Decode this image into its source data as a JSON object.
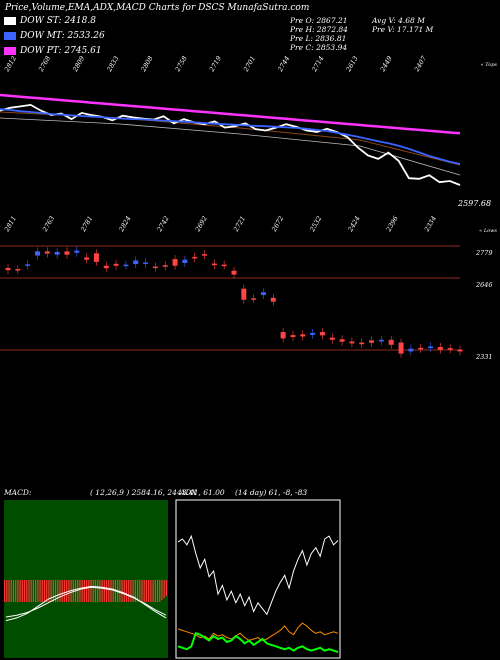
{
  "header": {
    "title": "Price,Volume,EMA,ADX,MACD Charts for DSCS MunafaSutra.com",
    "legend": [
      {
        "label": "DOW ST: 2418.8",
        "color": "#ffffff"
      },
      {
        "label": "DOW MT: 2533.26",
        "color": "#3b63ff"
      },
      {
        "label": "DOW PT: 2745.61",
        "color": "#ff33ff"
      }
    ],
    "stats_col1": [
      "Pre O: 2867.21",
      "Pre H: 2872.84",
      "Pre L: 2836.81",
      "Pre C: 2853.94"
    ],
    "stats_col2": [
      "Avg V: 4.68 M",
      "Pre V: 17.171 M"
    ]
  },
  "chart_data": [
    {
      "type": "line",
      "name": "price-ema-panel",
      "top_labels": [
        "2812",
        "2768",
        "2809",
        "2833",
        "2808",
        "2758",
        "2719",
        "2701",
        "2744",
        "2714",
        "2613",
        "2449",
        "2407"
      ],
      "bottom_labels": [
        "2811",
        "2763",
        "2781",
        "2824",
        "2742",
        "2692",
        "2721",
        "2672",
        "2532",
        "2424",
        "2396",
        "2334"
      ],
      "corner_labels": {
        "top_right": "« Tops",
        "bottom_right": "« Lows"
      },
      "last_price_label": "2597.68",
      "series": [
        {
          "color": "#ffffff",
          "values": [
            2860,
            2870,
            2875,
            2880,
            2860,
            2845,
            2850,
            2830,
            2852,
            2844,
            2838,
            2826,
            2842,
            2836,
            2832,
            2828,
            2840,
            2815,
            2830,
            2818,
            2812,
            2822,
            2800,
            2805,
            2815,
            2795,
            2790,
            2800,
            2812,
            2803,
            2790,
            2785,
            2796,
            2784,
            2766,
            2730,
            2702,
            2690,
            2712,
            2683,
            2622,
            2620,
            2632,
            2608,
            2612,
            2598
          ]
        },
        {
          "color": "#3b63ff",
          "values": [
            2865,
            2862,
            2858,
            2855,
            2852,
            2848,
            2846,
            2843,
            2841,
            2839,
            2837,
            2834,
            2832,
            2830,
            2829,
            2827,
            2825,
            2823,
            2821,
            2819,
            2816,
            2814,
            2812,
            2810,
            2808,
            2806,
            2805,
            2803,
            2801,
            2799,
            2796,
            2792,
            2788,
            2782,
            2775,
            2768,
            2760,
            2752,
            2745,
            2736,
            2725,
            2713,
            2700,
            2690,
            2680,
            2672
          ]
        },
        {
          "color": "#ff33ff",
          "values": [
            2915,
            2912,
            2909,
            2906,
            2903,
            2900,
            2897,
            2894,
            2891,
            2888,
            2885,
            2882,
            2879,
            2876,
            2873,
            2870,
            2867,
            2864,
            2861,
            2858,
            2855,
            2852,
            2849,
            2846,
            2843,
            2840,
            2837,
            2834,
            2831,
            2828,
            2825,
            2822,
            2819,
            2816,
            2813,
            2810,
            2807,
            2804,
            2801,
            2798,
            2795,
            2792,
            2789,
            2786,
            2783,
            2780
          ]
        }
      ]
    },
    {
      "type": "candlestick",
      "name": "candles-panel",
      "level_labels": [
        "2779",
        "2646",
        "2331"
      ],
      "candles": [
        {
          "o": 2730,
          "c": 2722,
          "color": "#ff4444"
        },
        {
          "o": 2726,
          "c": 2724,
          "color": "#ff4444"
        },
        {
          "o": 2740,
          "c": 2743,
          "color": "#3b63ff"
        },
        {
          "o": 2775,
          "c": 2790,
          "color": "#3b63ff"
        },
        {
          "o": 2790,
          "c": 2782,
          "color": "#ff4444"
        },
        {
          "o": 2778,
          "c": 2788,
          "color": "#3b63ff"
        },
        {
          "o": 2790,
          "c": 2778,
          "color": "#ff4444"
        },
        {
          "o": 2785,
          "c": 2793,
          "color": "#3b63ff"
        },
        {
          "o": 2768,
          "c": 2760,
          "color": "#ff4444"
        },
        {
          "o": 2783,
          "c": 2752,
          "color": "#ff4444"
        },
        {
          "o": 2738,
          "c": 2729,
          "color": "#ff4444"
        },
        {
          "o": 2745,
          "c": 2738,
          "color": "#ff4444"
        },
        {
          "o": 2740,
          "c": 2742,
          "color": "#3b63ff"
        },
        {
          "o": 2744,
          "c": 2757,
          "color": "#3b63ff"
        },
        {
          "o": 2745,
          "c": 2750,
          "color": "#3b63ff"
        },
        {
          "o": 2735,
          "c": 2731,
          "color": "#ff4444"
        },
        {
          "o": 2740,
          "c": 2736,
          "color": "#ff4444"
        },
        {
          "o": 2762,
          "c": 2738,
          "color": "#ff4444"
        },
        {
          "o": 2760,
          "c": 2748,
          "color": "#3b63ff"
        },
        {
          "o": 2770,
          "c": 2765,
          "color": "#ff4444"
        },
        {
          "o": 2776,
          "c": 2780,
          "color": "#ff4444"
        },
        {
          "o": 2746,
          "c": 2740,
          "color": "#ff4444"
        },
        {
          "o": 2742,
          "c": 2740,
          "color": "#ff4444"
        },
        {
          "o": 2720,
          "c": 2706,
          "color": "#ff4444"
        },
        {
          "o": 2655,
          "c": 2615,
          "color": "#ff4444"
        },
        {
          "o": 2618,
          "c": 2620,
          "color": "#ff4444"
        },
        {
          "o": 2632,
          "c": 2642,
          "color": "#3b63ff"
        },
        {
          "o": 2622,
          "c": 2608,
          "color": "#ff4444"
        },
        {
          "o": 2498,
          "c": 2475,
          "color": "#ff4444"
        },
        {
          "o": 2487,
          "c": 2480,
          "color": "#ff4444"
        },
        {
          "o": 2490,
          "c": 2482,
          "color": "#ff4444"
        },
        {
          "o": 2495,
          "c": 2488,
          "color": "#3b63ff"
        },
        {
          "o": 2498,
          "c": 2486,
          "color": "#ff4444"
        },
        {
          "o": 2478,
          "c": 2470,
          "color": "#ff4444"
        },
        {
          "o": 2472,
          "c": 2463,
          "color": "#ff4444"
        },
        {
          "o": 2464,
          "c": 2457,
          "color": "#ff4444"
        },
        {
          "o": 2460,
          "c": 2454,
          "color": "#ff4444"
        },
        {
          "o": 2468,
          "c": 2459,
          "color": "#ff4444"
        },
        {
          "o": 2470,
          "c": 2464,
          "color": "#3b63ff"
        },
        {
          "o": 2470,
          "c": 2452,
          "color": "#ff4444"
        },
        {
          "o": 2460,
          "c": 2420,
          "color": "#ff4444"
        },
        {
          "o": 2428,
          "c": 2438,
          "color": "#3b63ff"
        },
        {
          "o": 2437,
          "c": 2441,
          "color": "#ff4444"
        },
        {
          "o": 2440,
          "c": 2446,
          "color": "#3b63ff"
        },
        {
          "o": 2444,
          "c": 2434,
          "color": "#ff4444"
        },
        {
          "o": 2440,
          "c": 2436,
          "color": "#ff4444"
        },
        {
          "o": 2435,
          "c": 2428,
          "color": "#ff4444"
        }
      ]
    },
    {
      "type": "bar",
      "name": "macd-panel",
      "label": "MACD:",
      "values_text": "( 12,26,9 ) 2584.16,  2443.41,  61.00",
      "histogram": [
        -22,
        -22,
        -22,
        -22,
        -22,
        -22,
        -22,
        -22,
        -22,
        -22,
        -22,
        -22,
        -22,
        -22,
        -22,
        -22,
        -22,
        -22,
        -22,
        -22,
        -22,
        -22,
        -22,
        -22,
        -22,
        -22,
        -22,
        -22,
        -22,
        -22,
        -22,
        -22,
        -22,
        -22,
        -22,
        -22,
        -22,
        -22,
        -22,
        -22,
        -22,
        -22,
        -22,
        -22,
        -22,
        -22,
        -22,
        -22,
        -22,
        -22,
        -22,
        -22,
        -22,
        -22,
        -22,
        -22,
        -22,
        -22,
        -22,
        -22,
        -22,
        -22,
        -22,
        -22,
        -22,
        -22,
        -22,
        -22,
        -22,
        -22,
        -22,
        -20,
        -18,
        -16
      ],
      "series": [
        {
          "color": "#ffffff",
          "values": [
            -30,
            -28,
            -25,
            -20,
            -14,
            -8,
            -3,
            1,
            3,
            2,
            0,
            -4,
            -9,
            -15,
            -22,
            -28
          ]
        },
        {
          "color": "#ffffff",
          "values": [
            -34,
            -31,
            -26,
            -18,
            -10,
            -5,
            -1,
            2,
            4,
            3,
            1,
            -3,
            -8,
            -16,
            -24,
            -31
          ]
        }
      ]
    },
    {
      "type": "line",
      "name": "adx-panel",
      "label": "ADX",
      "values_text": "(14 day) 61, -8, -83",
      "series": [
        {
          "color": "#ffffff",
          "values": [
            78,
            80,
            76,
            82,
            70,
            60,
            66,
            54,
            58,
            42,
            48,
            38,
            44,
            36,
            42,
            34,
            40,
            30,
            36,
            32,
            28,
            36,
            44,
            50,
            55,
            46,
            58,
            66,
            72,
            62,
            70,
            74,
            68,
            80,
            82,
            76,
            79
          ]
        },
        {
          "color": "#ff8c00",
          "values": [
            18,
            17,
            16,
            15,
            14,
            12,
            13,
            11,
            15,
            13,
            14,
            12,
            11,
            13,
            15,
            12,
            10,
            11,
            12,
            10,
            11,
            13,
            15,
            17,
            20,
            16,
            14,
            19,
            22,
            20,
            17,
            15,
            16,
            14,
            15,
            16,
            15
          ]
        },
        {
          "color": "#00ff00",
          "values": [
            6,
            5,
            4,
            6,
            15,
            14,
            12,
            10,
            13,
            11,
            12,
            9,
            10,
            13,
            11,
            8,
            10,
            7,
            9,
            11,
            8,
            7,
            6,
            5,
            4,
            5,
            3,
            5,
            6,
            4,
            3,
            4,
            5,
            3,
            4,
            3,
            2
          ]
        }
      ]
    }
  ]
}
